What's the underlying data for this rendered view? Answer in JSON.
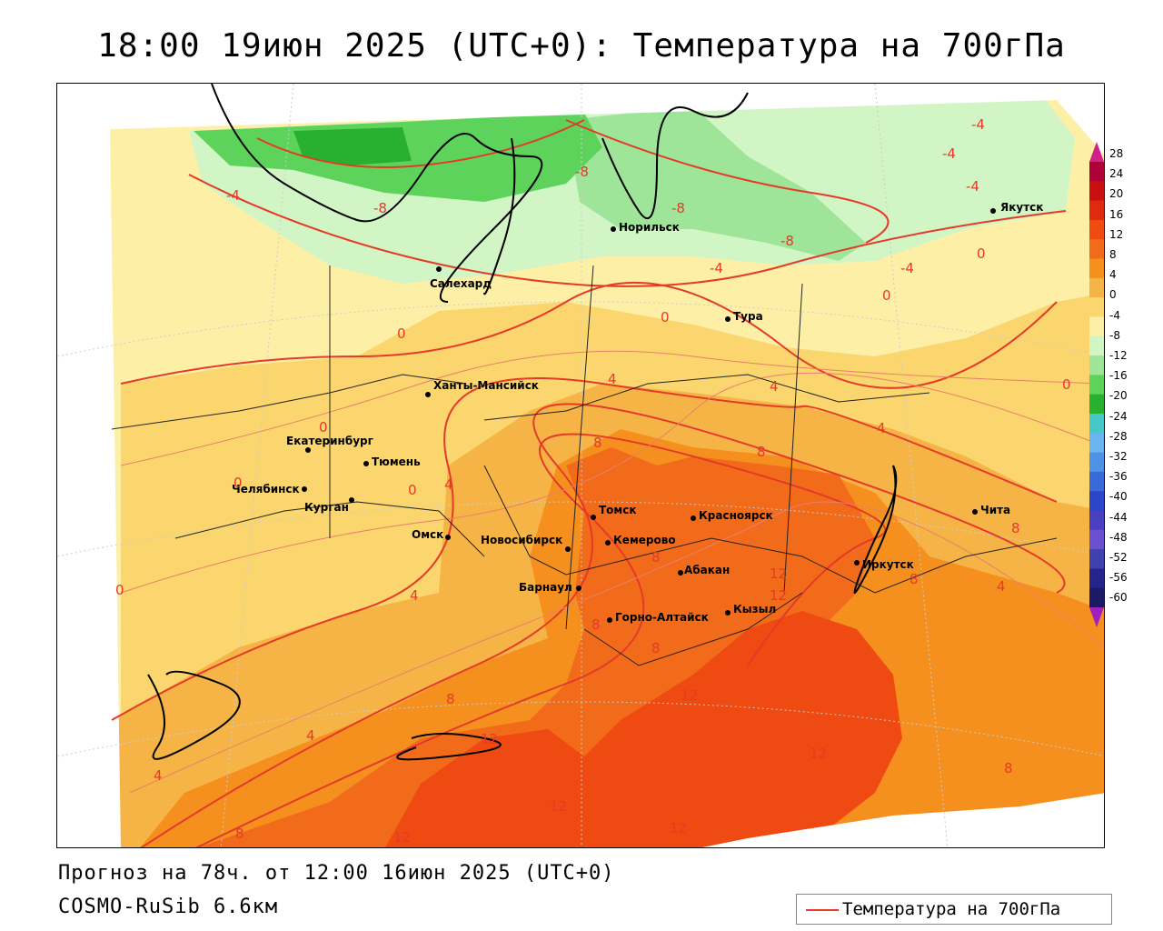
{
  "title": "18:00 19июн 2025 (UTC+0): Температура на 700гПа",
  "footer": {
    "forecast": "Прогноз на 78ч. от 12:00 16июн 2025 (UTC+0)",
    "model": "COSMO-RuSib 6.6км"
  },
  "legend": {
    "label": "Температура на 700гПа",
    "color": "#e53a2a"
  },
  "colorbar": {
    "ticks": [
      "28",
      "24",
      "20",
      "16",
      "12",
      "8",
      "4",
      "0",
      "-4",
      "-8",
      "-12",
      "-16",
      "-20",
      "-24",
      "-28",
      "-32",
      "-36",
      "-40",
      "-44",
      "-48",
      "-52",
      "-56",
      "-60"
    ],
    "colors": [
      "#b0003a",
      "#c81010",
      "#e02a10",
      "#ef4a12",
      "#f26b1a",
      "#f5901f",
      "#f7b446",
      "#fbd66e",
      "#fdf0a6",
      "#d2f5c6",
      "#9ee59a",
      "#5ed35c",
      "#28b030",
      "#47c8c8",
      "#6ab4f0",
      "#4e92e6",
      "#3a6ad8",
      "#2b46c8",
      "#4a3fbe",
      "#6a4fd0",
      "#4040b0",
      "#24248a",
      "#1a1a66"
    ]
  },
  "cities": [
    {
      "name": "Якутск"
    },
    {
      "name": "Норильск"
    },
    {
      "name": "Салехард"
    },
    {
      "name": "Тура"
    },
    {
      "name": "Ханты-Мансийск"
    },
    {
      "name": "Екатеринбург"
    },
    {
      "name": "Тюмень"
    },
    {
      "name": "Челябинск"
    },
    {
      "name": "Курган"
    },
    {
      "name": "Омск"
    },
    {
      "name": "Новосибирск"
    },
    {
      "name": "Томск"
    },
    {
      "name": "Кемерово"
    },
    {
      "name": "Красноярск"
    },
    {
      "name": "Абакан"
    },
    {
      "name": "Барнаул"
    },
    {
      "name": "Горно-Алтайск"
    },
    {
      "name": "Кызыл"
    },
    {
      "name": "Иркутск"
    },
    {
      "name": "Чита"
    }
  ],
  "isotherm_labels": [
    "-4",
    "-4",
    "-4",
    "-8",
    "-8",
    "-8",
    "-8",
    "-4",
    "-4",
    "-4",
    "0",
    "0",
    "0",
    "0",
    "0",
    "0",
    "0",
    "0",
    "0",
    "4",
    "4",
    "4",
    "4",
    "4",
    "4",
    "4",
    "4",
    "8",
    "8",
    "8",
    "8",
    "8",
    "8",
    "8",
    "8",
    "8",
    "8",
    "12",
    "12",
    "12",
    "12",
    "12",
    "12",
    "12",
    "12"
  ]
}
